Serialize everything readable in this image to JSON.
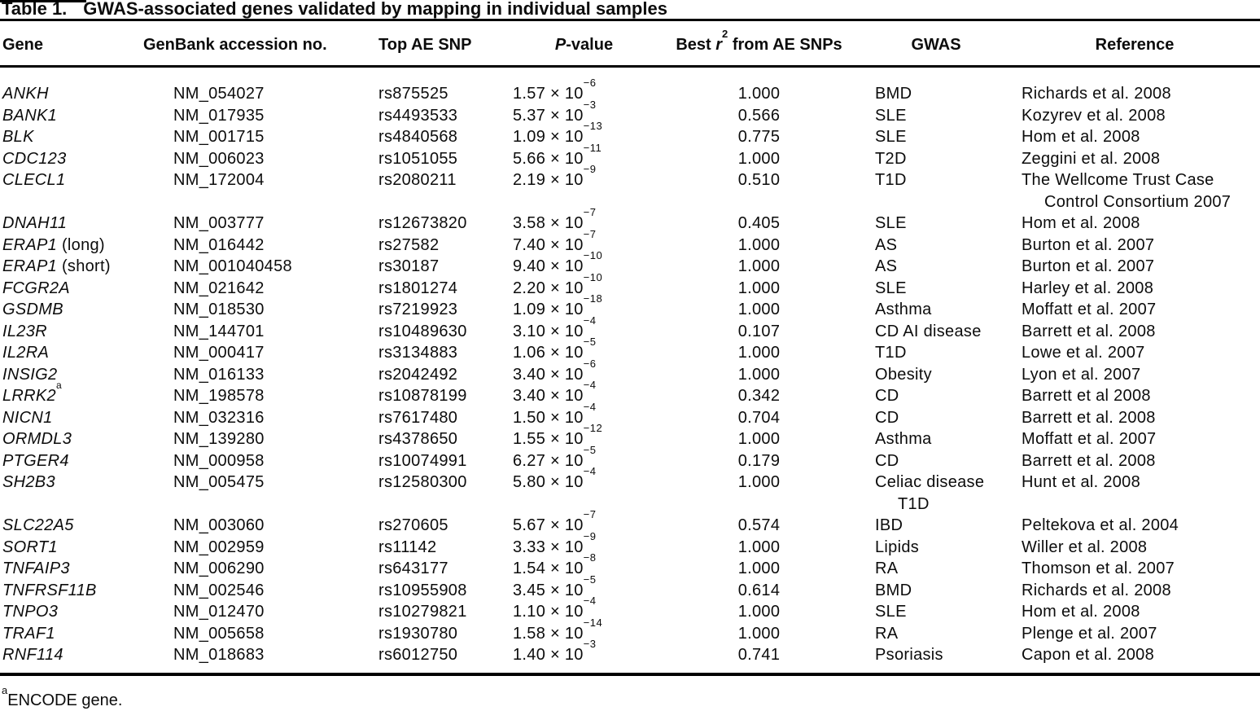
{
  "title": {
    "label": "Table 1.",
    "text": "GWAS-associated genes validated by mapping in individual samples"
  },
  "columns": {
    "gene": "Gene",
    "genbank": "GenBank accession no.",
    "snp": "Top AE SNP",
    "p_italic": "P",
    "p_rest": "-value",
    "r2_pre": "Best ",
    "r2_italic": "r",
    "r2_sup": "2",
    "r2_post": " from AE SNPs",
    "gwas": "GWAS",
    "reference": "Reference"
  },
  "rows": [
    {
      "gene": "ANKH",
      "genbank": "NM_054027",
      "snp": "rs875525",
      "p": "1.57 × 10",
      "p_sup": "−6",
      "r2": "1.000",
      "gwas": [
        "BMD"
      ],
      "reference": [
        "Richards et al. 2008"
      ]
    },
    {
      "gene": "BANK1",
      "genbank": "NM_017935",
      "snp": "rs4493533",
      "p": "5.37 × 10",
      "p_sup": "−3",
      "r2": "0.566",
      "gwas": [
        "SLE"
      ],
      "reference": [
        "Kozyrev et al. 2008"
      ]
    },
    {
      "gene": "BLK",
      "genbank": "NM_001715",
      "snp": "rs4840568",
      "p": "1.09 × 10",
      "p_sup": "−13",
      "r2": "0.775",
      "gwas": [
        "SLE"
      ],
      "reference": [
        "Hom et al. 2008"
      ]
    },
    {
      "gene": "CDC123",
      "genbank": "NM_006023",
      "snp": "rs1051055",
      "p": "5.66 × 10",
      "p_sup": "−11",
      "r2": "1.000",
      "gwas": [
        "T2D"
      ],
      "reference": [
        "Zeggini et al. 2008"
      ]
    },
    {
      "gene": "CLECL1",
      "genbank": "NM_172004",
      "snp": "rs2080211",
      "p": "2.19 × 10",
      "p_sup": "−9",
      "r2": "0.510",
      "gwas": [
        "T1D"
      ],
      "reference": [
        "The Wellcome Trust Case",
        "Control Consortium 2007"
      ]
    },
    {
      "gene": "DNAH11",
      "genbank": "NM_003777",
      "snp": "rs12673820",
      "p": "3.58 × 10",
      "p_sup": "−7",
      "r2": "0.405",
      "gwas": [
        "SLE"
      ],
      "reference": [
        "Hom et al. 2008"
      ]
    },
    {
      "gene": "ERAP1",
      "note": "(long)",
      "genbank": "NM_016442",
      "snp": "rs27582",
      "p": "7.40 × 10",
      "p_sup": "−7",
      "r2": "1.000",
      "gwas": [
        "AS"
      ],
      "reference": [
        "Burton et al. 2007"
      ]
    },
    {
      "gene": "ERAP1",
      "note": "(short)",
      "genbank": "NM_001040458",
      "snp": "rs30187",
      "p": "9.40 × 10",
      "p_sup": "−10",
      "r2": "1.000",
      "gwas": [
        "AS"
      ],
      "reference": [
        "Burton et al. 2007"
      ]
    },
    {
      "gene": "FCGR2A",
      "genbank": "NM_021642",
      "snp": "rs1801274",
      "p": "2.20 × 10",
      "p_sup": "−10",
      "r2": "1.000",
      "gwas": [
        "SLE"
      ],
      "reference": [
        "Harley et al. 2008"
      ]
    },
    {
      "gene": "GSDMB",
      "genbank": "NM_018530",
      "snp": "rs7219923",
      "p": "1.09 × 10",
      "p_sup": "−18",
      "r2": "1.000",
      "gwas": [
        "Asthma"
      ],
      "reference": [
        "Moffatt et al. 2007"
      ]
    },
    {
      "gene": "IL23R",
      "genbank": "NM_144701",
      "snp": "rs10489630",
      "p": "3.10 × 10",
      "p_sup": "−4",
      "r2": "0.107",
      "gwas": [
        "CD AI disease"
      ],
      "reference": [
        "Barrett et al. 2008"
      ]
    },
    {
      "gene": "IL2RA",
      "genbank": "NM_000417",
      "snp": "rs3134883",
      "p": "1.06 × 10",
      "p_sup": "−5",
      "r2": "1.000",
      "gwas": [
        "T1D"
      ],
      "reference": [
        "Lowe et al. 2007"
      ]
    },
    {
      "gene": "INSIG2",
      "genbank": "NM_016133",
      "snp": "rs2042492",
      "p": "3.40 × 10",
      "p_sup": "−6",
      "r2": "1.000",
      "gwas": [
        "Obesity"
      ],
      "reference": [
        "Lyon et al. 2007"
      ]
    },
    {
      "gene": "LRRK2",
      "gene_sup": "a",
      "genbank": "NM_198578",
      "snp": "rs10878199",
      "p": "3.40 × 10",
      "p_sup": "−4",
      "r2": "0.342",
      "gwas": [
        "CD"
      ],
      "reference": [
        "Barrett et al 2008"
      ]
    },
    {
      "gene": "NICN1",
      "genbank": "NM_032316",
      "snp": "rs7617480",
      "p": "1.50 × 10",
      "p_sup": "−4",
      "r2": "0.704",
      "gwas": [
        "CD"
      ],
      "reference": [
        "Barrett et al. 2008"
      ]
    },
    {
      "gene": "ORMDL3",
      "genbank": "NM_139280",
      "snp": "rs4378650",
      "p": "1.55 × 10",
      "p_sup": "−12",
      "r2": "1.000",
      "gwas": [
        "Asthma"
      ],
      "reference": [
        "Moffatt et al. 2007"
      ]
    },
    {
      "gene": "PTGER4",
      "genbank": "NM_000958",
      "snp": "rs10074991",
      "p": "6.27 × 10",
      "p_sup": "−5",
      "r2": "0.179",
      "gwas": [
        "CD"
      ],
      "reference": [
        "Barrett et al. 2008"
      ]
    },
    {
      "gene": "SH2B3",
      "genbank": "NM_005475",
      "snp": "rs12580300",
      "p": "5.80 × 10",
      "p_sup": "−4",
      "r2": "1.000",
      "gwas": [
        "Celiac disease",
        "T1D"
      ],
      "reference": [
        "Hunt et al. 2008"
      ]
    },
    {
      "gene": "SLC22A5",
      "genbank": "NM_003060",
      "snp": "rs270605",
      "p": "5.67 × 10",
      "p_sup": "−7",
      "r2": "0.574",
      "gwas": [
        "IBD"
      ],
      "reference": [
        "Peltekova et al. 2004"
      ]
    },
    {
      "gene": "SORT1",
      "genbank": "NM_002959",
      "snp": "rs11142",
      "p": "3.33 × 10",
      "p_sup": "−9",
      "r2": "1.000",
      "gwas": [
        "Lipids"
      ],
      "reference": [
        "Willer et al. 2008"
      ]
    },
    {
      "gene": "TNFAIP3",
      "genbank": "NM_006290",
      "snp": "rs643177",
      "p": "1.54 × 10",
      "p_sup": "−8",
      "r2": "1.000",
      "gwas": [
        "RA"
      ],
      "reference": [
        "Thomson et al. 2007"
      ]
    },
    {
      "gene": "TNFRSF11B",
      "genbank": "NM_002546",
      "snp": "rs10955908",
      "p": "3.45 × 10",
      "p_sup": "−5",
      "r2": "0.614",
      "gwas": [
        "BMD"
      ],
      "reference": [
        "Richards et al. 2008"
      ]
    },
    {
      "gene": "TNPO3",
      "genbank": "NM_012470",
      "snp": "rs10279821",
      "p": "1.10 × 10",
      "p_sup": "−4",
      "r2": "1.000",
      "gwas": [
        "SLE"
      ],
      "reference": [
        "Hom et al. 2008"
      ]
    },
    {
      "gene": "TRAF1",
      "genbank": "NM_005658",
      "snp": "rs1930780",
      "p": "1.58 × 10",
      "p_sup": "−14",
      "r2": "1.000",
      "gwas": [
        "RA"
      ],
      "reference": [
        "Plenge et al. 2007"
      ]
    },
    {
      "gene": "RNF114",
      "genbank": "NM_018683",
      "snp": "rs6012750",
      "p": "1.40 × 10",
      "p_sup": "−3",
      "r2": "0.741",
      "gwas": [
        "Psoriasis"
      ],
      "reference": [
        "Capon et al. 2008"
      ]
    }
  ],
  "footnote": {
    "sup": "a",
    "text": "ENCODE gene."
  }
}
